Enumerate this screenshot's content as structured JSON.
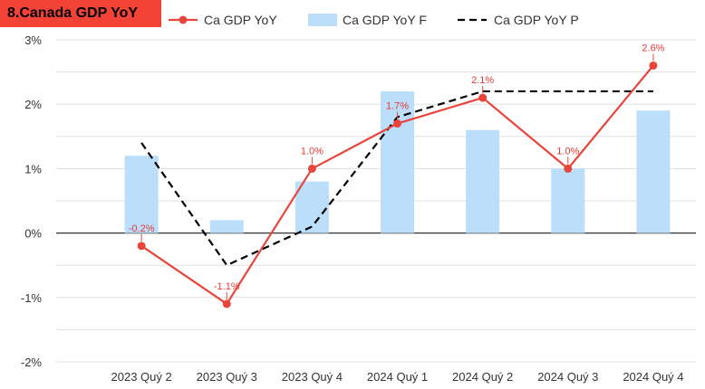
{
  "title": "8.Canada GDP YoY",
  "colors": {
    "title_bg": "#f44336",
    "actual": "#e8453c",
    "forecast": "#bbdefb",
    "projected": "#000000",
    "grid": "#e0e0e0",
    "zero_line": "#333333"
  },
  "chart_data": {
    "type": "bar",
    "categories": [
      "2023 Quý 2",
      "2023 Quý 3",
      "2023 Quý 4",
      "2024 Quý 1",
      "2024 Quý 2",
      "2024 Quý 3",
      "2024 Quý 4"
    ],
    "series": [
      {
        "name": "Ca GDP YoY",
        "type": "line",
        "values": [
          -0.2,
          -1.1,
          1.0,
          1.7,
          2.1,
          1.0,
          2.6
        ],
        "labels": [
          "-0.2%",
          "-1.1%",
          "1.0%",
          "1.7%",
          "2.1%",
          "1.0%",
          "2.6%"
        ]
      },
      {
        "name": "Ca GDP YoY F",
        "type": "bar",
        "values": [
          1.2,
          0.2,
          0.8,
          2.2,
          1.6,
          1.0,
          1.9
        ]
      },
      {
        "name": "Ca GDP YoY P",
        "type": "dashed-line",
        "values": [
          1.4,
          -0.5,
          0.1,
          1.8,
          2.2,
          2.2,
          2.2
        ]
      }
    ],
    "yticks": [
      "3%",
      "2%",
      "1%",
      "0%",
      "-1%",
      "-2%"
    ],
    "ylim": [
      -2,
      3
    ],
    "grid": true,
    "legend": "top"
  }
}
